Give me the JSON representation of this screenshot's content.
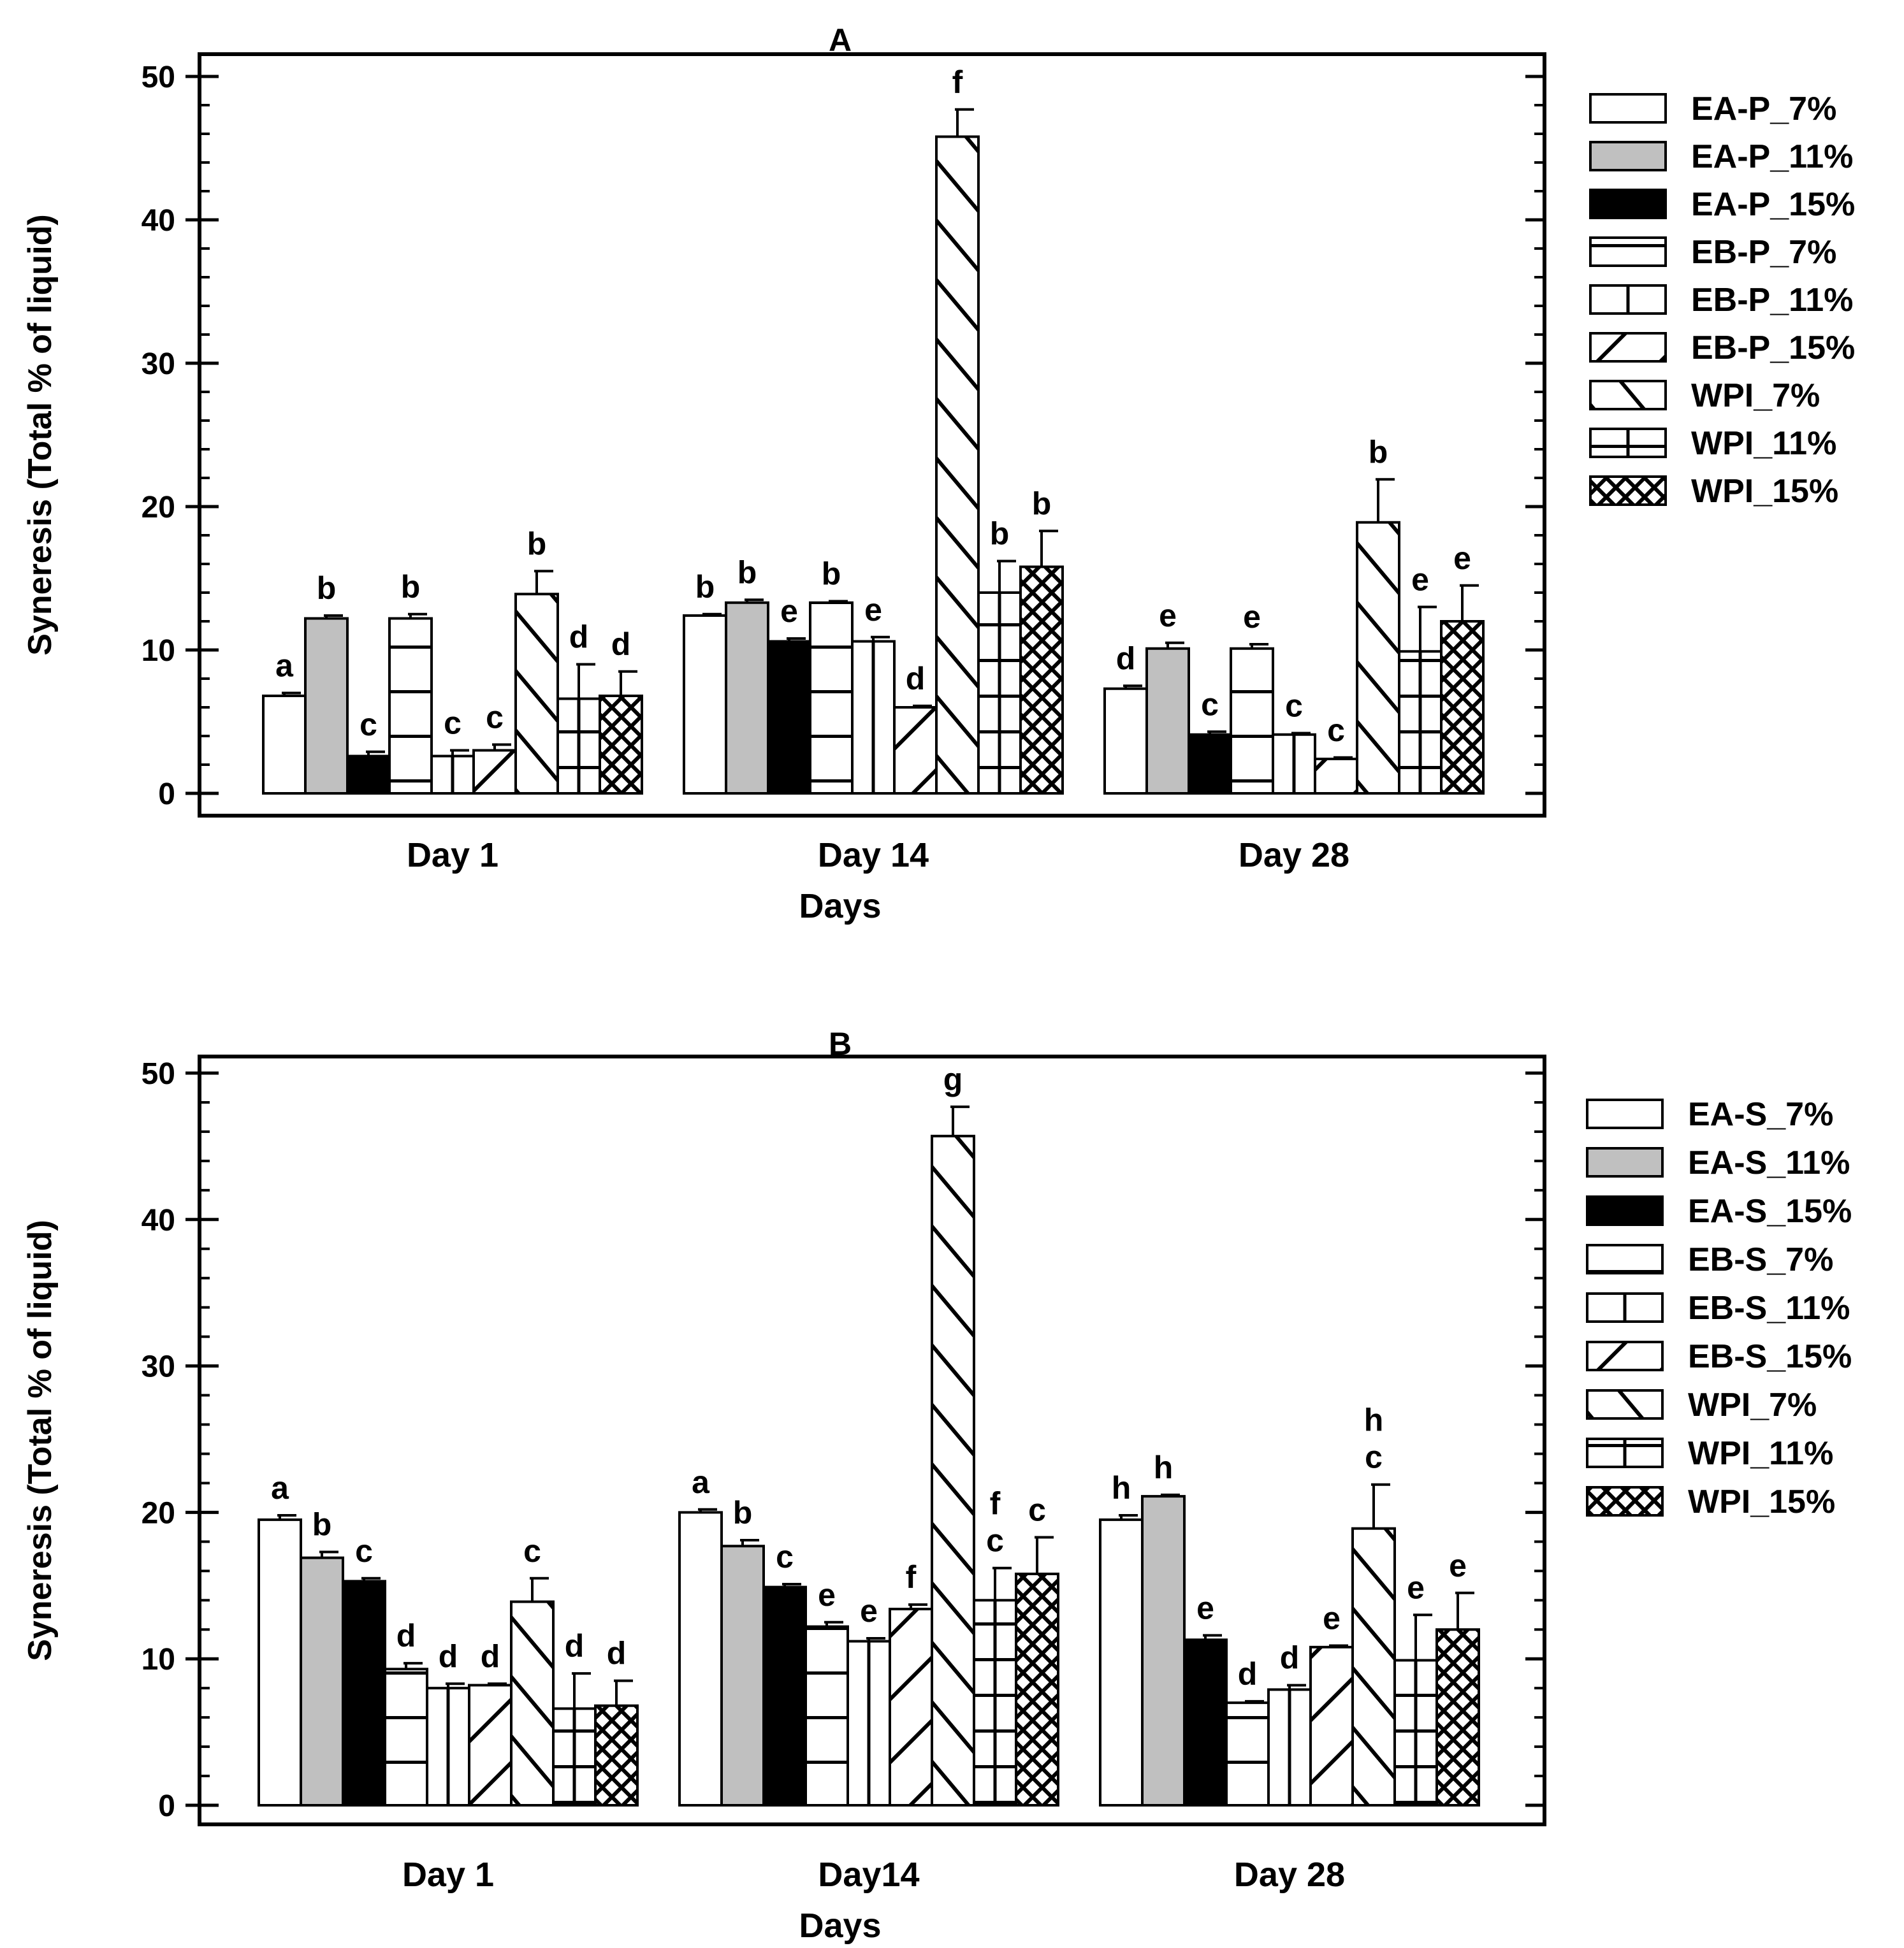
{
  "chart_data": [
    {
      "panel_label": "A",
      "type": "bar",
      "title": "A",
      "xlabel": "Days",
      "ylabel": "Syneresis (Total % of liquid)",
      "ylim": [
        0,
        50
      ],
      "yticks": [
        0,
        10,
        20,
        30,
        40,
        50
      ],
      "categories": [
        "Day 1",
        "Day 14",
        "Day 28"
      ],
      "legend_position": "right",
      "series": [
        {
          "name": "EA-P_7%",
          "pattern": "open",
          "values": [
            6.8,
            12.4,
            7.3
          ],
          "errors": [
            0.2,
            0.1,
            0.2
          ],
          "letters": [
            "a",
            "b",
            "d"
          ]
        },
        {
          "name": "EA-P_11%",
          "pattern": "gray",
          "values": [
            12.2,
            13.3,
            10.1
          ],
          "errors": [
            0.2,
            0.2,
            0.4
          ],
          "letters": [
            "b",
            "b",
            "e"
          ]
        },
        {
          "name": "EA-P_15%",
          "pattern": "black",
          "values": [
            2.6,
            10.6,
            4.1
          ],
          "errors": [
            0.3,
            0.2,
            0.2
          ],
          "letters": [
            "c",
            "e",
            "c"
          ]
        },
        {
          "name": "EB-P_7%",
          "pattern": "hlines",
          "values": [
            12.2,
            13.3,
            10.1
          ],
          "errors": [
            0.3,
            0.1,
            0.3
          ],
          "letters": [
            "b",
            "b",
            "e"
          ]
        },
        {
          "name": "EB-P_11%",
          "pattern": "vline",
          "values": [
            2.6,
            10.6,
            4.1
          ],
          "errors": [
            0.4,
            0.3,
            0.1
          ],
          "letters": [
            "c",
            "e",
            "c"
          ]
        },
        {
          "name": "EB-P_15%",
          "pattern": "backdiag",
          "values": [
            3.0,
            6.0,
            2.4
          ],
          "errors": [
            0.4,
            0.1,
            0.1
          ],
          "letters": [
            "c",
            "d",
            "c"
          ]
        },
        {
          "name": "WPI_7%",
          "pattern": "fwddiag",
          "values": [
            13.9,
            45.8,
            18.9
          ],
          "errors": [
            1.6,
            1.9,
            3.0
          ],
          "letters": [
            "b",
            "f",
            "b"
          ]
        },
        {
          "name": "WPI_11%",
          "pattern": "grid",
          "values": [
            6.6,
            14.0,
            9.9
          ],
          "errors": [
            2.4,
            2.2,
            3.1
          ],
          "letters": [
            "d",
            "b",
            "e"
          ]
        },
        {
          "name": "WPI_15%",
          "pattern": "cross",
          "values": [
            6.8,
            15.8,
            12.0
          ],
          "errors": [
            1.7,
            2.5,
            2.5
          ],
          "letters": [
            "d",
            "b",
            "e"
          ]
        }
      ]
    },
    {
      "panel_label": "B",
      "type": "bar",
      "title": "B",
      "xlabel": "Days",
      "ylabel": "Syneresis (Total % of liquid)",
      "ylim": [
        0,
        50
      ],
      "yticks": [
        0,
        10,
        20,
        30,
        40,
        50
      ],
      "categories": [
        "Day 1",
        "Day14",
        "Day 28"
      ],
      "legend_position": "right",
      "series": [
        {
          "name": "EA-S_7%",
          "pattern": "open",
          "values": [
            19.5,
            20.0,
            19.5
          ],
          "errors": [
            0.3,
            0.2,
            0.3
          ],
          "letters": [
            "a",
            "a",
            "h"
          ]
        },
        {
          "name": "EA-S_11%",
          "pattern": "gray",
          "values": [
            16.9,
            17.7,
            21.1
          ],
          "errors": [
            0.4,
            0.4,
            0.1
          ],
          "letters": [
            "b",
            "b",
            "h"
          ]
        },
        {
          "name": "EA-S_15%",
          "pattern": "black",
          "values": [
            15.3,
            14.9,
            11.3
          ],
          "errors": [
            0.2,
            0.2,
            0.3
          ],
          "letters": [
            "c",
            "c",
            "e"
          ]
        },
        {
          "name": "EB-S_7%",
          "pattern": "hlines",
          "values": [
            9.3,
            12.2,
            7.0
          ],
          "errors": [
            0.4,
            0.3,
            0.1
          ],
          "letters": [
            "d",
            "e",
            "d"
          ]
        },
        {
          "name": "EB-S_11%",
          "pattern": "vline",
          "values": [
            8.0,
            11.2,
            7.9
          ],
          "errors": [
            0.3,
            0.2,
            0.3
          ],
          "letters": [
            "d",
            "e",
            "d"
          ]
        },
        {
          "name": "EB-S_15%",
          "pattern": "backdiag",
          "values": [
            8.2,
            13.4,
            10.8
          ],
          "errors": [
            0.1,
            0.3,
            0.1
          ],
          "letters": [
            "d",
            "f",
            "e"
          ]
        },
        {
          "name": "WPI_7%",
          "pattern": "fwddiag",
          "values": [
            13.9,
            45.7,
            18.9
          ],
          "errors": [
            1.6,
            2.0,
            3.0
          ],
          "letters": [
            "c",
            "g",
            "h\nc"
          ]
        },
        {
          "name": "WPI_11%",
          "pattern": "grid",
          "values": [
            6.6,
            14.0,
            9.9
          ],
          "errors": [
            2.4,
            2.2,
            3.1
          ],
          "letters": [
            "d",
            "f\nc",
            "e"
          ]
        },
        {
          "name": "WPI_15%",
          "pattern": "cross",
          "values": [
            6.8,
            15.8,
            12.0
          ],
          "errors": [
            1.7,
            2.5,
            2.5
          ],
          "letters": [
            "d",
            "c",
            "e"
          ]
        }
      ]
    }
  ]
}
